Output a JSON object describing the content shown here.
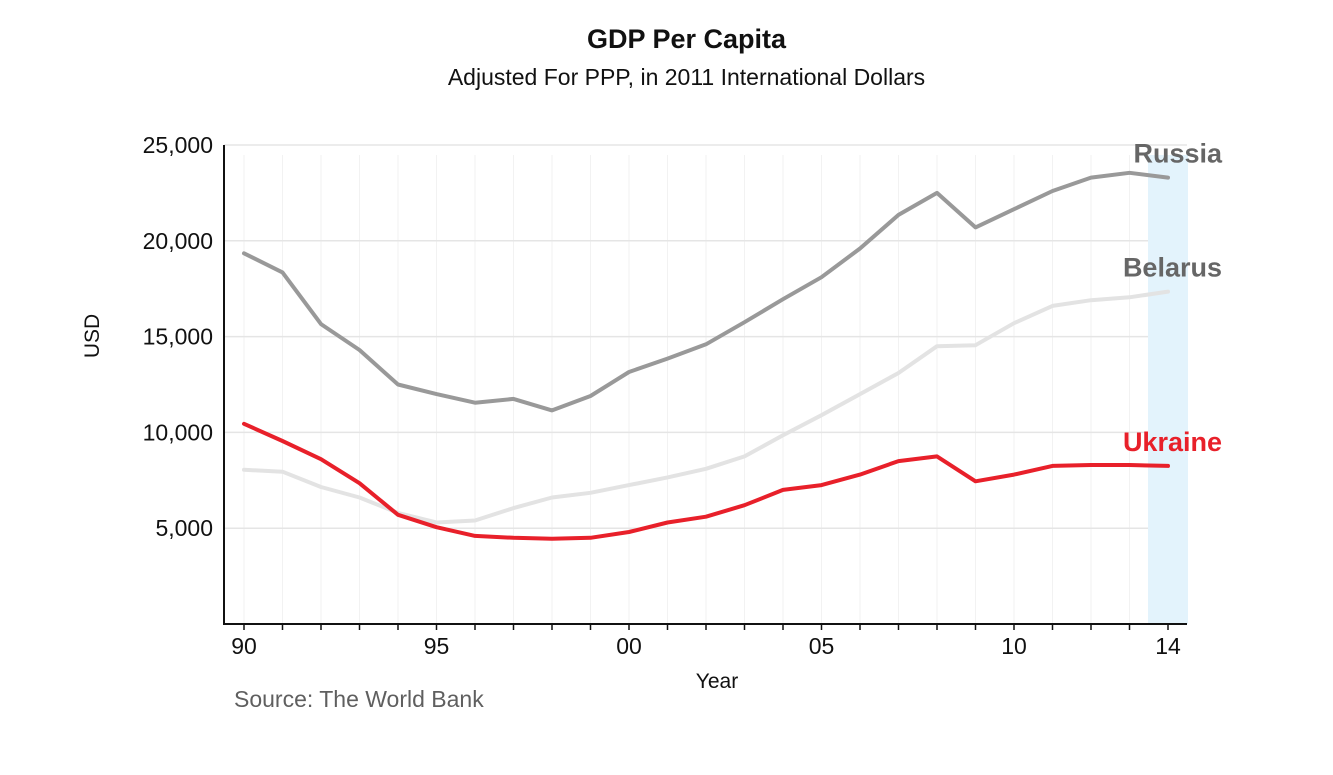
{
  "chart_data": {
    "type": "line",
    "title": "GDP Per Capita",
    "subtitle": "Adjusted For PPP, in 2011 International Dollars",
    "xlabel": "Year",
    "ylabel": "USD",
    "source": "Source: The World Bank",
    "x": [
      1990,
      1991,
      1992,
      1993,
      1994,
      1995,
      1996,
      1997,
      1998,
      1999,
      2000,
      2001,
      2002,
      2003,
      2004,
      2005,
      2006,
      2007,
      2008,
      2009,
      2010,
      2011,
      2012,
      2013,
      2014
    ],
    "x_tick_values": [
      1990,
      1995,
      2000,
      2005,
      2010,
      2014
    ],
    "x_tick_labels": [
      "90",
      "95",
      "00",
      "05",
      "10",
      "14"
    ],
    "xlim": [
      1990,
      2014
    ],
    "ylim": [
      0,
      25000
    ],
    "y_ticks": [
      5000,
      10000,
      15000,
      20000,
      25000
    ],
    "y_tick_labels": [
      "5,000",
      "10,000",
      "15,000",
      "20,000",
      "25,000"
    ],
    "highlight_x": 2014,
    "grid": true,
    "series": [
      {
        "name": "Russia",
        "color": "#999999",
        "label_color": "#666666",
        "values": [
          19350,
          18350,
          15650,
          14300,
          12500,
          12000,
          11550,
          11750,
          11150,
          11900,
          13150,
          13850,
          14600,
          15750,
          16950,
          18100,
          19600,
          21350,
          22500,
          20700,
          21650,
          22600,
          23300,
          23550,
          23300
        ]
      },
      {
        "name": "Belarus",
        "color": "#e3e3e3",
        "label_color": "#666666",
        "values": [
          8050,
          7950,
          7150,
          6600,
          5800,
          5300,
          5400,
          6050,
          6600,
          6850,
          7250,
          7650,
          8100,
          8750,
          9850,
          10900,
          12000,
          13100,
          14500,
          14550,
          15700,
          16600,
          16900,
          17050,
          17350
        ]
      },
      {
        "name": "Ukraine",
        "color": "#e8202a",
        "label_color": "#e8202a",
        "values": [
          10450,
          9550,
          8600,
          7350,
          5700,
          5050,
          4600,
          4500,
          4450,
          4500,
          4800,
          5300,
          5600,
          6200,
          7000,
          7250,
          7800,
          8500,
          8750,
          7450,
          7800,
          8250,
          8300,
          8300,
          8250
        ]
      }
    ]
  }
}
